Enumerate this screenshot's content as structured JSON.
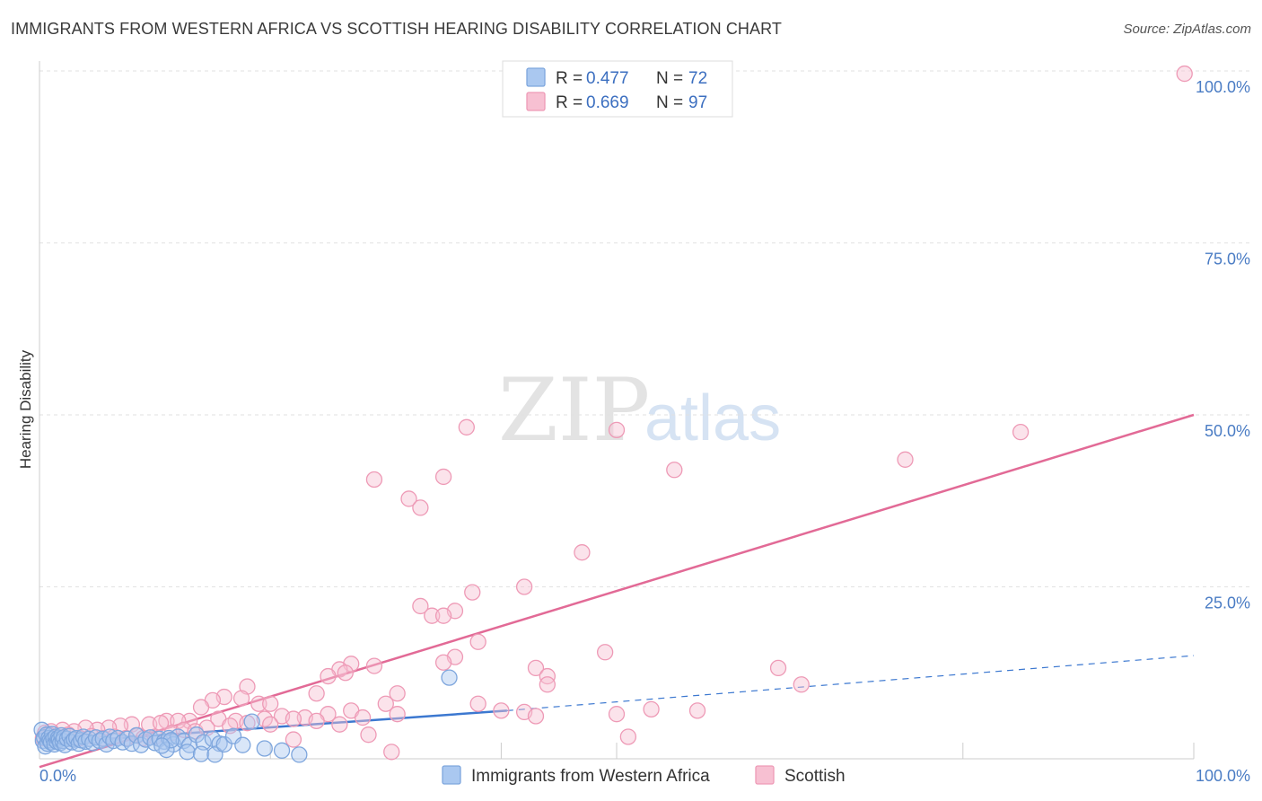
{
  "title": "IMMIGRANTS FROM WESTERN AFRICA VS SCOTTISH HEARING DISABILITY CORRELATION CHART",
  "source": "Source: ZipAtlas.com",
  "watermark": {
    "zip": "ZIP",
    "atlas": "atlas"
  },
  "colors": {
    "blue_fill": "#aac8f0",
    "blue_stroke": "#7ea6dd",
    "blue_line": "#3c78d0",
    "pink_fill": "#f7c0d2",
    "pink_stroke": "#ee9ab6",
    "pink_line": "#e26a96",
    "grid": "#e2e2e2",
    "tick_text": "#4a7cc4"
  },
  "chart_data": {
    "type": "scatter",
    "title": "IMMIGRANTS FROM WESTERN AFRICA VS SCOTTISH HEARING DISABILITY CORRELATION CHART",
    "xlabel": "",
    "ylabel": "Hearing Disability",
    "xlim": [
      0,
      100
    ],
    "ylim": [
      0,
      100
    ],
    "x_tick_labels": [
      "0.0%",
      "100.0%"
    ],
    "y_ticks": [
      {
        "value": 25,
        "label": "25.0%"
      },
      {
        "value": 50,
        "label": "50.0%"
      },
      {
        "value": 75,
        "label": "75.0%"
      },
      {
        "value": 100,
        "label": "100.0%"
      }
    ],
    "legend": [
      {
        "r_label": "R =",
        "r_value": "0.477",
        "n_label": "N =",
        "n_value": "72"
      },
      {
        "r_label": "R =",
        "r_value": "0.669",
        "n_label": "N =",
        "n_value": "97"
      }
    ],
    "series": [
      {
        "name": "Immigrants from Western Africa",
        "color": "#aac8f0",
        "trend": {
          "x0": 0,
          "y0": 2.2,
          "x1": 40.5,
          "y1": 7.0,
          "dash_to_x": 100,
          "dash_to_y": 15.0
        },
        "points": [
          [
            0.2,
            4.2
          ],
          [
            0.3,
            2.6
          ],
          [
            0.4,
            3.1
          ],
          [
            0.5,
            1.8
          ],
          [
            0.6,
            3.5
          ],
          [
            0.7,
            2.2
          ],
          [
            0.8,
            3.0
          ],
          [
            0.9,
            2.7
          ],
          [
            1.0,
            2.4
          ],
          [
            1.1,
            3.6
          ],
          [
            1.2,
            2.9
          ],
          [
            1.3,
            2.1
          ],
          [
            1.4,
            3.2
          ],
          [
            1.5,
            2.5
          ],
          [
            1.6,
            3.0
          ],
          [
            1.7,
            2.8
          ],
          [
            1.8,
            2.3
          ],
          [
            1.9,
            3.4
          ],
          [
            2.0,
            2.6
          ],
          [
            2.1,
            3.1
          ],
          [
            2.2,
            2.0
          ],
          [
            2.4,
            2.9
          ],
          [
            2.6,
            3.3
          ],
          [
            2.8,
            2.4
          ],
          [
            3.0,
            2.8
          ],
          [
            3.2,
            3.0
          ],
          [
            3.4,
            2.2
          ],
          [
            3.6,
            2.7
          ],
          [
            3.8,
            3.2
          ],
          [
            4.0,
            2.5
          ],
          [
            4.3,
            2.9
          ],
          [
            4.6,
            2.3
          ],
          [
            4.9,
            3.1
          ],
          [
            5.2,
            2.6
          ],
          [
            5.5,
            2.9
          ],
          [
            5.8,
            2.1
          ],
          [
            6.1,
            3.2
          ],
          [
            6.4,
            2.6
          ],
          [
            6.8,
            3.0
          ],
          [
            7.2,
            2.4
          ],
          [
            7.6,
            2.9
          ],
          [
            8.0,
            2.2
          ],
          [
            8.4,
            3.4
          ],
          [
            8.8,
            2.0
          ],
          [
            9.2,
            2.8
          ],
          [
            9.6,
            3.1
          ],
          [
            10.0,
            2.3
          ],
          [
            10.4,
            2.9
          ],
          [
            10.8,
            2.5
          ],
          [
            11.2,
            3.0
          ],
          [
            11.6,
            2.1
          ],
          [
            12.0,
            3.2
          ],
          [
            12.5,
            2.6
          ],
          [
            13.0,
            2.0
          ],
          [
            13.6,
            3.5
          ],
          [
            14.2,
            2.4
          ],
          [
            15.0,
            2.9
          ],
          [
            15.6,
            2.2
          ],
          [
            11.0,
            1.3
          ],
          [
            12.8,
            1.0
          ],
          [
            14.0,
            0.7
          ],
          [
            15.2,
            0.6
          ],
          [
            16.0,
            2.1
          ],
          [
            16.8,
            3.3
          ],
          [
            17.6,
            2.0
          ],
          [
            18.4,
            5.4
          ],
          [
            19.5,
            1.5
          ],
          [
            21.0,
            1.2
          ],
          [
            11.4,
            2.7
          ],
          [
            10.6,
            1.9
          ],
          [
            22.5,
            0.6
          ],
          [
            35.5,
            11.8
          ]
        ]
      },
      {
        "name": "Scottish",
        "color": "#f7c0d2",
        "trend": {
          "x0": 0,
          "y0": -1.2,
          "x1": 100,
          "y1": 50.0
        },
        "points": [
          [
            99.2,
            99.6
          ],
          [
            37.0,
            48.2
          ],
          [
            50.0,
            47.8
          ],
          [
            85.0,
            47.5
          ],
          [
            75.0,
            43.5
          ],
          [
            55.0,
            42.0
          ],
          [
            35.0,
            41.0
          ],
          [
            29.0,
            40.6
          ],
          [
            32.0,
            37.8
          ],
          [
            33.0,
            36.5
          ],
          [
            47.0,
            30.0
          ],
          [
            42.0,
            25.0
          ],
          [
            37.5,
            24.2
          ],
          [
            33.0,
            22.2
          ],
          [
            36.0,
            21.5
          ],
          [
            34.0,
            20.8
          ],
          [
            35.0,
            20.8
          ],
          [
            38.0,
            17.0
          ],
          [
            49.0,
            15.5
          ],
          [
            36.0,
            14.8
          ],
          [
            35.0,
            14.0
          ],
          [
            27.0,
            13.8
          ],
          [
            29.0,
            13.5
          ],
          [
            64.0,
            13.2
          ],
          [
            43.0,
            13.2
          ],
          [
            26.0,
            13.0
          ],
          [
            26.5,
            12.5
          ],
          [
            25.0,
            12.0
          ],
          [
            44.0,
            12.0
          ],
          [
            66.0,
            10.8
          ],
          [
            44.0,
            10.8
          ],
          [
            18.0,
            10.5
          ],
          [
            24.0,
            9.5
          ],
          [
            31.0,
            9.5
          ],
          [
            16.0,
            9.0
          ],
          [
            17.5,
            8.8
          ],
          [
            15.0,
            8.5
          ],
          [
            19.0,
            8.0
          ],
          [
            20.0,
            8.0
          ],
          [
            30.0,
            8.0
          ],
          [
            38.0,
            8.0
          ],
          [
            14.0,
            7.5
          ],
          [
            27.0,
            7.0
          ],
          [
            40.0,
            7.0
          ],
          [
            53.0,
            7.2
          ],
          [
            57.0,
            7.0
          ],
          [
            42.0,
            6.8
          ],
          [
            31.0,
            6.5
          ],
          [
            21.0,
            6.2
          ],
          [
            23.0,
            6.0
          ],
          [
            25.0,
            6.5
          ],
          [
            28.0,
            6.0
          ],
          [
            22.0,
            5.8
          ],
          [
            50.0,
            6.5
          ],
          [
            43.0,
            6.2
          ],
          [
            19.5,
            5.8
          ],
          [
            13.0,
            5.5
          ],
          [
            15.5,
            5.8
          ],
          [
            17.0,
            5.5
          ],
          [
            11.0,
            5.5
          ],
          [
            12.0,
            5.5
          ],
          [
            9.5,
            5.0
          ],
          [
            10.5,
            5.2
          ],
          [
            8.0,
            5.0
          ],
          [
            7.0,
            4.8
          ],
          [
            6.0,
            4.5
          ],
          [
            5.0,
            4.2
          ],
          [
            4.0,
            4.5
          ],
          [
            3.0,
            4.0
          ],
          [
            2.0,
            4.2
          ],
          [
            1.0,
            4.0
          ],
          [
            0.5,
            3.8
          ],
          [
            0.8,
            3.5
          ],
          [
            1.5,
            3.2
          ],
          [
            2.5,
            3.5
          ],
          [
            3.5,
            3.0
          ],
          [
            4.5,
            3.3
          ],
          [
            5.5,
            3.0
          ],
          [
            6.5,
            3.2
          ],
          [
            7.5,
            3.0
          ],
          [
            8.5,
            3.4
          ],
          [
            9.0,
            3.0
          ],
          [
            10.0,
            3.2
          ],
          [
            11.5,
            3.8
          ],
          [
            12.5,
            4.2
          ],
          [
            13.5,
            4.0
          ],
          [
            14.5,
            4.5
          ],
          [
            16.5,
            4.8
          ],
          [
            18.0,
            5.2
          ],
          [
            22.0,
            2.8
          ],
          [
            28.5,
            3.5
          ],
          [
            30.5,
            1.0
          ],
          [
            51.0,
            3.2
          ],
          [
            26.0,
            5.0
          ],
          [
            24.0,
            5.5
          ],
          [
            0.3,
            3.0
          ],
          [
            20.0,
            5.0
          ]
        ]
      }
    ],
    "bottom_legend": [
      "Immigrants from Western Africa",
      "Scottish"
    ]
  }
}
